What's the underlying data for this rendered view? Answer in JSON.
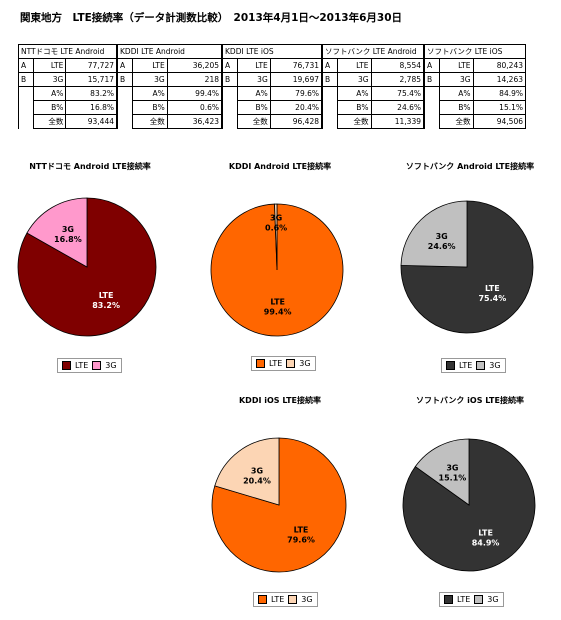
{
  "header": {
    "title": "関東地方　LTE接続率（データ計測数比較）　2013年4月1日～2013年6月30日"
  },
  "table": [
    {
      "name": "NTTドコモ LTE Android",
      "rows": [
        [
          "A",
          "LTE",
          "77,727"
        ],
        [
          "B",
          "3G",
          "15,717"
        ]
      ],
      "stats": [
        [
          "A%",
          "83.2%"
        ],
        [
          "B%",
          "16.8%"
        ],
        [
          "全数",
          "93,444"
        ]
      ]
    },
    {
      "name": "KDDI LTE Android",
      "rows": [
        [
          "A",
          "LTE",
          "36,205"
        ],
        [
          "B",
          "3G",
          "218"
        ]
      ],
      "stats": [
        [
          "A%",
          "99.4%"
        ],
        [
          "B%",
          "0.6%"
        ],
        [
          "全数",
          "36,423"
        ]
      ]
    },
    {
      "name": "KDDI LTE iOS",
      "rows": [
        [
          "A",
          "LTE",
          "76,731"
        ],
        [
          "B",
          "3G",
          "19,697"
        ]
      ],
      "stats": [
        [
          "A%",
          "79.6%"
        ],
        [
          "B%",
          "20.4%"
        ],
        [
          "全数",
          "96,428"
        ]
      ]
    },
    {
      "name": "ソフトバンク LTE Android",
      "rows": [
        [
          "A",
          "LTE",
          "8,554"
        ],
        [
          "B",
          "3G",
          "2,785"
        ]
      ],
      "stats": [
        [
          "A%",
          "75.4%"
        ],
        [
          "B%",
          "24.6%"
        ],
        [
          "全数",
          "11,339"
        ]
      ]
    },
    {
      "name": "ソフトバンク LTE iOS",
      "rows": [
        [
          "A",
          "LTE",
          "80,243"
        ],
        [
          "B",
          "3G",
          "14,263"
        ]
      ],
      "stats": [
        [
          "A%",
          "84.9%"
        ],
        [
          "B%",
          "15.1%"
        ],
        [
          "全数",
          "94,506"
        ]
      ]
    }
  ],
  "chart_data": [
    {
      "type": "pie",
      "title": "NTTドコモ Android LTE接続率",
      "slices": [
        {
          "label": "LTE",
          "value": 83.2,
          "text": "83.2%",
          "color": "#7f0000",
          "text_color": "#ffffff"
        },
        {
          "label": "3G",
          "value": 16.8,
          "text": "16.8%",
          "color": "#ff99cc",
          "text_color": "#000000"
        }
      ],
      "legend": [
        "LTE",
        "3G"
      ],
      "legend_placement": "bottom"
    },
    {
      "type": "pie",
      "title": "KDDI Android LTE接続率",
      "slices": [
        {
          "label": "LTE",
          "value": 99.4,
          "text": "99.4%",
          "color": "#ff6600",
          "text_color": "#000000"
        },
        {
          "label": "3G",
          "value": 0.6,
          "text": "0.6%",
          "color": "#fcd5b4",
          "text_color": "#000000"
        }
      ],
      "legend": [
        "LTE",
        "3G"
      ],
      "legend_placement": "bottom"
    },
    {
      "type": "pie",
      "title": "ソフトバンク Android LTE接続率",
      "slices": [
        {
          "label": "LTE",
          "value": 75.4,
          "text": "75.4%",
          "color": "#333333",
          "text_color": "#ffffff"
        },
        {
          "label": "3G",
          "value": 24.6,
          "text": "24.6%",
          "color": "#c0c0c0",
          "text_color": "#000000"
        }
      ],
      "legend": [
        "LTE",
        "3G"
      ],
      "legend_placement": "bottom"
    },
    {
      "type": "pie",
      "title": "KDDI iOS LTE接続率",
      "slices": [
        {
          "label": "LTE",
          "value": 79.6,
          "text": "79.6%",
          "color": "#ff6600",
          "text_color": "#000000"
        },
        {
          "label": "3G",
          "value": 20.4,
          "text": "20.4%",
          "color": "#fcd5b4",
          "text_color": "#000000"
        }
      ],
      "legend": [
        "LTE",
        "3G"
      ],
      "legend_placement": "bottom"
    },
    {
      "type": "pie",
      "title": "ソフトバンク iOS LTE接続率",
      "slices": [
        {
          "label": "LTE",
          "value": 84.9,
          "text": "84.9%",
          "color": "#333333",
          "text_color": "#ffffff"
        },
        {
          "label": "3G",
          "value": 15.1,
          "text": "15.1%",
          "color": "#c0c0c0",
          "text_color": "#000000"
        }
      ],
      "legend": [
        "LTE",
        "3G"
      ],
      "legend_placement": "bottom"
    }
  ]
}
